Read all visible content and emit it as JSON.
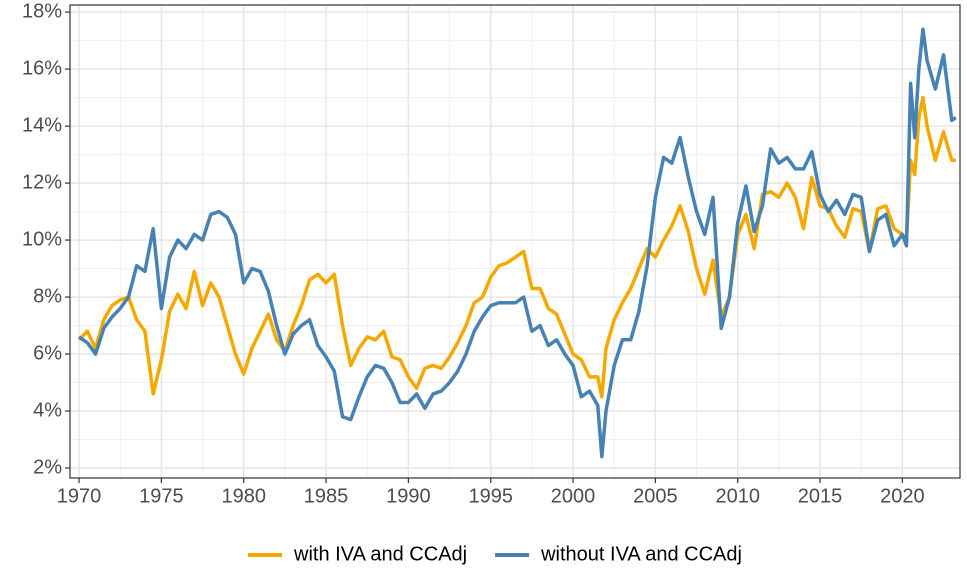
{
  "chart_data": {
    "type": "line",
    "x": [
      1970,
      1970.5,
      1971,
      1971.5,
      1972,
      1972.5,
      1973,
      1973.5,
      1974,
      1974.5,
      1975,
      1975.5,
      1976,
      1976.5,
      1977,
      1977.5,
      1978,
      1978.5,
      1979,
      1979.5,
      1980,
      1980.5,
      1981,
      1981.5,
      1982,
      1982.5,
      1983,
      1983.5,
      1984,
      1984.5,
      1985,
      1985.5,
      1986,
      1986.5,
      1987,
      1987.5,
      1988,
      1988.5,
      1989,
      1989.5,
      1990,
      1990.5,
      1991,
      1991.5,
      1992,
      1992.5,
      1993,
      1993.5,
      1994,
      1994.5,
      1995,
      1995.5,
      1996,
      1996.5,
      1997,
      1997.5,
      1998,
      1998.5,
      1999,
      1999.5,
      2000,
      2000.5,
      2001,
      2001.5,
      2001.75,
      2002,
      2002.5,
      2003,
      2003.5,
      2004,
      2004.5,
      2005,
      2005.5,
      2006,
      2006.5,
      2007,
      2007.5,
      2008,
      2008.5,
      2009,
      2009.5,
      2010,
      2010.5,
      2011,
      2011.5,
      2012,
      2012.5,
      2013,
      2013.5,
      2014,
      2014.5,
      2015,
      2015.5,
      2016,
      2016.5,
      2017,
      2017.5,
      2018,
      2018.5,
      2019,
      2019.5,
      2020,
      2020.25,
      2020.5,
      2020.75,
      2021,
      2021.25,
      2021.5,
      2022,
      2022.5,
      2023,
      2023.25
    ],
    "series": [
      {
        "name": "with IVA and CCAdj",
        "color": "#f5a800",
        "values": [
          6.5,
          6.8,
          6.2,
          7.2,
          7.7,
          7.9,
          8.0,
          7.2,
          6.8,
          4.6,
          5.8,
          7.5,
          8.1,
          7.6,
          8.9,
          7.7,
          8.5,
          8.0,
          7.0,
          6.0,
          5.3,
          6.2,
          6.8,
          7.4,
          6.5,
          6.1,
          7.0,
          7.7,
          8.6,
          8.8,
          8.5,
          8.8,
          7.0,
          5.6,
          6.2,
          6.6,
          6.5,
          6.8,
          5.9,
          5.8,
          5.2,
          4.8,
          5.5,
          5.6,
          5.5,
          5.9,
          6.4,
          7.0,
          7.8,
          8.0,
          8.7,
          9.1,
          9.2,
          9.4,
          9.6,
          8.3,
          8.3,
          7.6,
          7.4,
          6.7,
          6.0,
          5.8,
          5.2,
          5.2,
          4.5,
          6.2,
          7.2,
          7.8,
          8.3,
          9.0,
          9.7,
          9.4,
          10.0,
          10.5,
          11.2,
          10.3,
          9.0,
          8.1,
          9.3,
          7.3,
          8.0,
          10.2,
          10.9,
          9.7,
          11.6,
          11.7,
          11.5,
          12.0,
          11.5,
          10.4,
          12.2,
          11.2,
          11.1,
          10.5,
          10.1,
          11.1,
          11.0,
          9.6,
          11.1,
          11.2,
          10.4,
          10.2,
          10.0,
          12.8,
          12.3,
          14.3,
          15.0,
          14.0,
          12.8,
          13.8,
          12.8,
          12.8
        ]
      },
      {
        "name": "without IVA and CCAdj",
        "color": "#4682b4",
        "values": [
          6.6,
          6.4,
          6.0,
          6.9,
          7.3,
          7.6,
          8.0,
          9.1,
          8.9,
          10.4,
          7.6,
          9.4,
          10.0,
          9.7,
          10.2,
          10.0,
          10.9,
          11.0,
          10.8,
          10.2,
          8.5,
          9.0,
          8.9,
          8.2,
          7.0,
          6.0,
          6.7,
          7.0,
          7.2,
          6.3,
          5.9,
          5.4,
          3.8,
          3.7,
          4.5,
          5.2,
          5.6,
          5.5,
          5.0,
          4.3,
          4.3,
          4.6,
          4.1,
          4.6,
          4.7,
          5.0,
          5.4,
          6.0,
          6.8,
          7.3,
          7.7,
          7.8,
          7.8,
          7.8,
          8.0,
          6.8,
          7.0,
          6.3,
          6.5,
          6.0,
          5.6,
          4.5,
          4.7,
          4.2,
          2.4,
          4.0,
          5.6,
          6.5,
          6.5,
          7.5,
          9.1,
          11.5,
          12.9,
          12.7,
          13.6,
          12.2,
          11.0,
          10.2,
          11.5,
          6.9,
          8.0,
          10.6,
          11.9,
          10.3,
          11.2,
          13.2,
          12.7,
          12.9,
          12.5,
          12.5,
          13.1,
          11.6,
          11.0,
          11.4,
          10.9,
          11.6,
          11.5,
          9.6,
          10.7,
          10.9,
          9.8,
          10.2,
          9.8,
          15.5,
          13.6,
          16.0,
          17.4,
          16.3,
          15.3,
          16.5,
          14.2,
          14.3
        ]
      }
    ],
    "xlim": [
      1969.45,
      2023.5
    ],
    "xticks": [
      1970,
      1975,
      1980,
      1985,
      1990,
      1995,
      2000,
      2005,
      2010,
      2015,
      2020
    ],
    "ylim": [
      1.65,
      18.25
    ],
    "yticks": [
      {
        "value": 2,
        "label": "2%"
      },
      {
        "value": 4,
        "label": "4%"
      },
      {
        "value": 6,
        "label": "6%"
      },
      {
        "value": 8,
        "label": "8%"
      },
      {
        "value": 10,
        "label": "10%"
      },
      {
        "value": 12,
        "label": "12%"
      },
      {
        "value": 14,
        "label": "14%"
      },
      {
        "value": 16,
        "label": "16%"
      },
      {
        "value": 18,
        "label": "18%"
      }
    ],
    "grid": true,
    "legend": "bottom"
  }
}
